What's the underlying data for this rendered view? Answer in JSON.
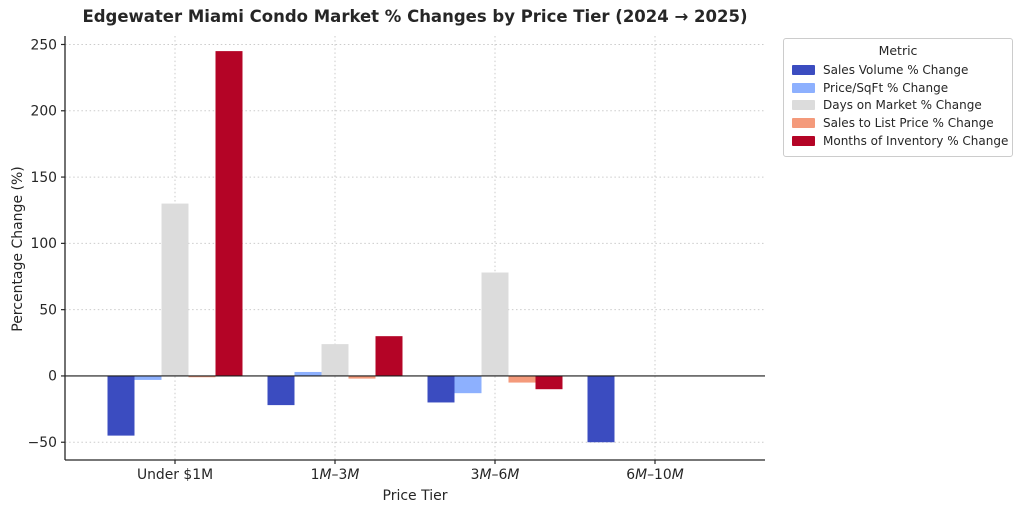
{
  "title": "Edgewater Miami Condo Market % Changes by Price Tier (2024 → 2025)",
  "chart_data": {
    "type": "bar",
    "title": "Edgewater Miami Condo Market % Changes by Price Tier (2024 → 2025)",
    "xlabel": "Price Tier",
    "ylabel": "Percentage Change (%)",
    "categories": [
      "Under $1M",
      "1M–3M",
      "3M–6M",
      "6M–10M"
    ],
    "series": [
      {
        "name": "Sales Volume % Change",
        "color": "#3b4cc0",
        "values": [
          -45,
          -22,
          -20,
          -50
        ]
      },
      {
        "name": "Price/SqFt % Change",
        "color": "#8db0fe",
        "values": [
          -3,
          3,
          -13,
          0
        ]
      },
      {
        "name": "Days on Market % Change",
        "color": "#dcdcdc",
        "values": [
          130,
          24,
          78,
          0
        ]
      },
      {
        "name": "Sales to List Price % Change",
        "color": "#f49a7b",
        "values": [
          -1,
          -2,
          -5,
          0
        ]
      },
      {
        "name": "Months of Inventory % Change",
        "color": "#b40426",
        "values": [
          245,
          30,
          -10,
          0
        ]
      }
    ],
    "yticks": [
      -50,
      0,
      50,
      100,
      150,
      200,
      250
    ],
    "ylim": [
      -63.4,
      256.4
    ],
    "grid": true,
    "zero_line": true,
    "legend": {
      "title": "Metric",
      "position": "upper right outside plot"
    },
    "colors": {
      "grid": "#cbcbcb",
      "axis": "#262626",
      "zero_line": "#1a1a1a",
      "text": "#262626",
      "background": "#ffffff"
    }
  }
}
